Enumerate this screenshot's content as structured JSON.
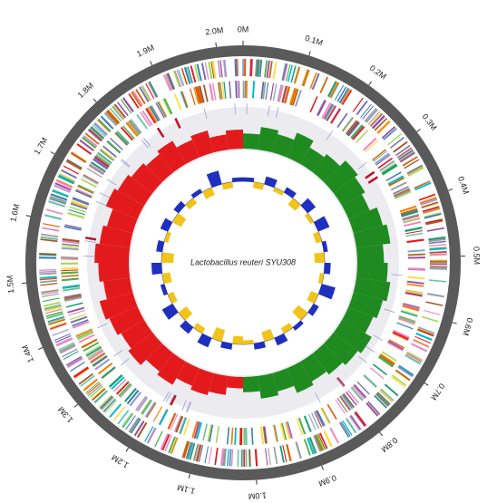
{
  "chart_data": {
    "type": "circular-genome",
    "title": "Lactobacillus reuteri SYU308",
    "xlim": [
      0,
      2.04
    ],
    "xticks": [
      {
        "value": 0,
        "label": "0M"
      },
      {
        "value": 0.1,
        "label": "0.1M"
      },
      {
        "value": 0.2,
        "label": "0.2M"
      },
      {
        "value": 0.3,
        "label": "0.3M"
      },
      {
        "value": 0.4,
        "label": "0.4M"
      },
      {
        "value": 0.5,
        "label": "0.5M"
      },
      {
        "value": 0.6,
        "label": "0.6M"
      },
      {
        "value": 0.7,
        "label": "0.7M"
      },
      {
        "value": 0.8,
        "label": "0.8M"
      },
      {
        "value": 0.9,
        "label": "0.9M"
      },
      {
        "value": 1.0,
        "label": "1.0M"
      },
      {
        "value": 1.1,
        "label": "1.1M"
      },
      {
        "value": 1.2,
        "label": "1.2M"
      },
      {
        "value": 1.3,
        "label": "1.3M"
      },
      {
        "value": 1.4,
        "label": "1.4M"
      },
      {
        "value": 1.5,
        "label": "1.5M"
      },
      {
        "value": 1.6,
        "label": "1.6M"
      },
      {
        "value": 1.7,
        "label": "1.7M"
      },
      {
        "value": 1.8,
        "label": "1.8M"
      },
      {
        "value": 1.9,
        "label": "1.9M"
      },
      {
        "value": 2.0,
        "label": "2.0M"
      }
    ],
    "gc_skew": {
      "lim": [
        -0.1,
        0.1
      ],
      "positive_color": "#1f8a1f",
      "negative_color": "#e31a1c",
      "values": [
        0.04,
        0.06,
        0.05,
        0.07,
        0.05,
        0.06,
        0.08,
        0.07,
        0.06,
        0.08,
        0.09,
        0.07,
        0.08,
        0.09,
        0.08,
        0.07,
        0.09,
        0.08,
        0.07,
        0.06,
        0.07,
        0.05,
        0.06,
        0.04,
        -0.03,
        -0.05,
        -0.06,
        -0.05,
        -0.07,
        -0.06,
        -0.08,
        -0.07,
        -0.08,
        -0.09,
        -0.07,
        -0.08,
        -0.09,
        -0.08,
        -0.07,
        -0.09,
        -0.08,
        -0.07,
        -0.06,
        -0.07,
        -0.05,
        -0.06,
        -0.04,
        -0.05
      ]
    },
    "gc_content": {
      "lim": [
        -0.1,
        0.1
      ],
      "positive_color": "#1f2fbf",
      "negative_color": "#f2c318",
      "values": [
        0.02,
        -0.03,
        0.04,
        -0.02,
        0.03,
        -0.04,
        0.05,
        -0.02,
        0.06,
        -0.03,
        0.02,
        -0.05,
        0.03,
        -0.02,
        0.07,
        -0.04,
        0.03,
        -0.06,
        0.02,
        -0.03,
        0.04,
        -0.05,
        0.03,
        -0.02,
        -0.04,
        0.03,
        -0.06,
        0.05,
        -0.03,
        0.04,
        -0.05,
        0.06,
        -0.03,
        0.02,
        -0.04,
        0.05,
        -0.06,
        0.03,
        -0.02,
        0.04,
        -0.05,
        0.03,
        -0.03,
        0.02,
        -0.04,
        0.07,
        -0.03,
        0.02
      ]
    }
  }
}
